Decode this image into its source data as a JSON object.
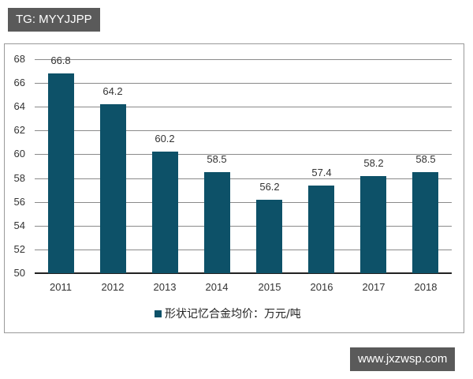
{
  "watermarks": {
    "top": "TG: MYYJJPP",
    "bottom": "www.jxzwsp.com"
  },
  "colors": {
    "bar": "#0d5168",
    "gridline": "#8a8a8a",
    "watermark_bg": "#5a5a5a"
  },
  "legend": {
    "label": "形状记忆合金均价：万元/吨"
  },
  "y_ticks": [
    "68",
    "66",
    "64",
    "62",
    "60",
    "58",
    "56",
    "54",
    "52",
    "50"
  ],
  "x_ticks": [
    "2011",
    "2012",
    "2013",
    "2014",
    "2015",
    "2016",
    "2017",
    "2018"
  ],
  "value_labels": [
    "66.8",
    "64.2",
    "60.2",
    "58.5",
    "56.2",
    "57.4",
    "58.2",
    "58.5"
  ],
  "chart_data": {
    "type": "bar",
    "title": "",
    "categories": [
      "2011",
      "2012",
      "2013",
      "2014",
      "2015",
      "2016",
      "2017",
      "2018"
    ],
    "series": [
      {
        "name": "形状记忆合金均价：万元/吨",
        "values": [
          66.8,
          64.2,
          60.2,
          58.5,
          56.2,
          57.4,
          58.2,
          58.5
        ]
      }
    ],
    "xlabel": "",
    "ylabel": "",
    "ylim": [
      50,
      68
    ],
    "yticks": [
      50,
      52,
      54,
      56,
      58,
      60,
      62,
      64,
      66,
      68
    ],
    "grid": true,
    "legend_position": "bottom",
    "data_labels": true
  }
}
